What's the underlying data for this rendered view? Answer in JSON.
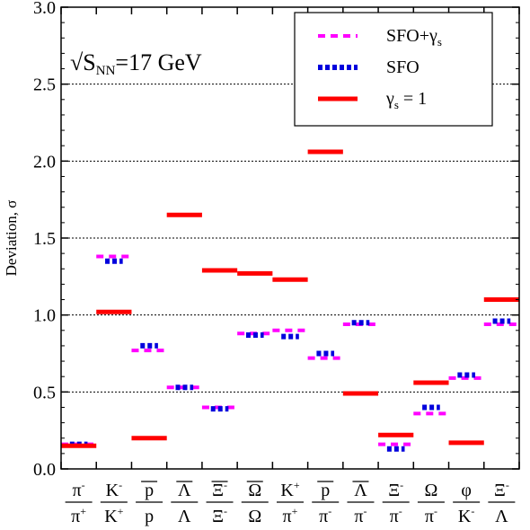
{
  "chart_data": {
    "type": "scatter",
    "annotation": {
      "main": "√S",
      "sub": "NN",
      "rest": "=17 GeV"
    },
    "ylabel": "Deviation, σ",
    "ylim": [
      0,
      3.0
    ],
    "yticks": [
      "0.0",
      "0.5",
      "1.0",
      "1.5",
      "2.0",
      "2.5",
      "3.0"
    ],
    "grid_lines_y": [
      0.5,
      1.0,
      1.5,
      2.0,
      2.5
    ],
    "legend_position": "top-right",
    "categories": [
      {
        "num": "π",
        "num_sup": "-",
        "num_over": false,
        "den": "π",
        "den_sup": "+",
        "den_over": false
      },
      {
        "num": "K",
        "num_sup": "-",
        "num_over": false,
        "den": "K",
        "den_sup": "+",
        "den_over": false
      },
      {
        "num": "p",
        "num_sup": "",
        "num_over": true,
        "den": "p",
        "den_sup": "",
        "den_over": false
      },
      {
        "num": "Λ",
        "num_sup": "",
        "num_over": true,
        "den": "Λ",
        "den_sup": "",
        "den_over": false
      },
      {
        "num": "Ξ",
        "num_sup": "-",
        "num_over": true,
        "den": "Ξ",
        "den_sup": "-",
        "den_over": false
      },
      {
        "num": "Ω",
        "num_sup": "",
        "num_over": true,
        "den": "Ω",
        "den_sup": "",
        "den_over": false
      },
      {
        "num": "K",
        "num_sup": "+",
        "num_over": false,
        "den": "π",
        "den_sup": "+",
        "den_over": false
      },
      {
        "num": "p",
        "num_sup": "",
        "num_over": true,
        "den": "π",
        "den_sup": "-",
        "den_over": false
      },
      {
        "num": "Λ",
        "num_sup": "",
        "num_over": true,
        "den": "π",
        "den_sup": "-",
        "den_over": false
      },
      {
        "num": "Ξ",
        "num_sup": "-",
        "num_over": false,
        "den": "π",
        "den_sup": "-",
        "den_over": false
      },
      {
        "num": "Ω",
        "num_sup": "",
        "num_over": false,
        "den": "π",
        "den_sup": "-",
        "den_over": false
      },
      {
        "num": "φ",
        "num_sup": "",
        "num_over": false,
        "den": "K",
        "den_sup": "-",
        "den_over": false
      },
      {
        "num": "Ξ",
        "num_sup": "-",
        "num_over": false,
        "den": "Λ",
        "den_sup": "",
        "den_over": false
      }
    ],
    "series": [
      {
        "name": "SFO+γ",
        "name_sub": "s",
        "style": "dashed-magenta",
        "color": "#ff00ff",
        "values": [
          0.16,
          1.38,
          0.77,
          0.53,
          0.4,
          0.88,
          0.9,
          0.72,
          0.94,
          0.16,
          0.36,
          0.59,
          0.94
        ]
      },
      {
        "name": "SFO",
        "name_sub": "",
        "style": "dotted-blue",
        "color": "#0000dd",
        "values": [
          0.16,
          1.35,
          0.8,
          0.53,
          0.39,
          0.87,
          0.86,
          0.75,
          0.95,
          0.13,
          0.4,
          0.61,
          0.96
        ]
      },
      {
        "name": "γ",
        "name_sub": "s",
        "name_rest": " = 1",
        "style": "solid-red",
        "color": "#ff0000",
        "values": [
          0.15,
          1.02,
          0.2,
          1.65,
          1.29,
          1.27,
          1.23,
          2.06,
          0.49,
          0.22,
          0.56,
          0.17,
          1.1
        ]
      }
    ]
  }
}
